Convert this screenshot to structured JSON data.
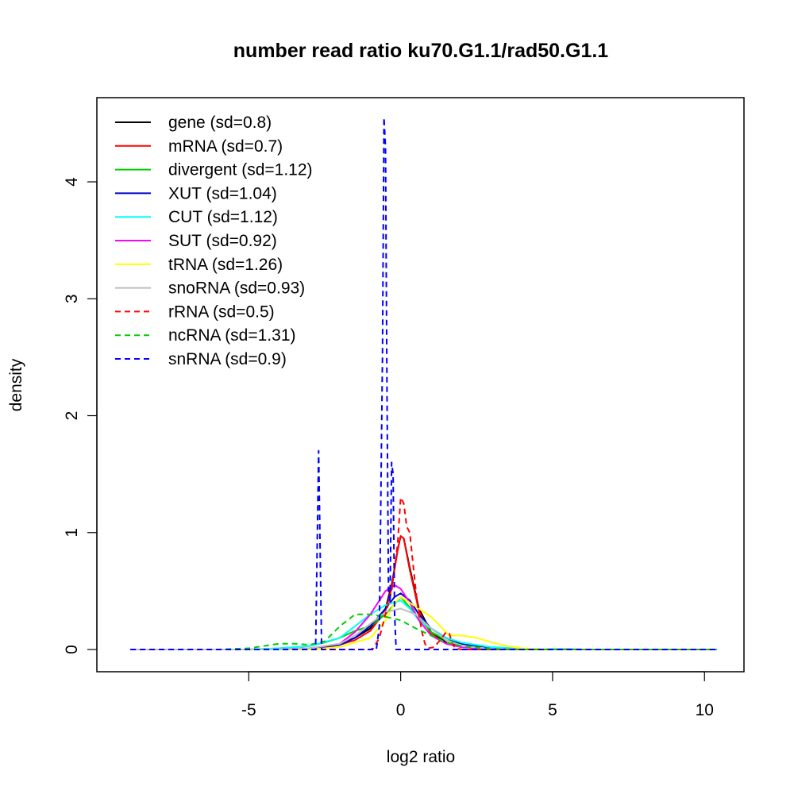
{
  "chart_data": {
    "type": "line",
    "title": "number read ratio ku70.G1.1/rad50.G1.1",
    "xlabel": "log2 ratio",
    "ylabel": "density",
    "xlim": [
      -10.0,
      11.3
    ],
    "ylim": [
      -0.19,
      4.72
    ],
    "xticks": [
      -5,
      0,
      5,
      10
    ],
    "yticks": [
      0,
      1,
      2,
      3,
      4
    ],
    "xtick_labels": [
      "-5",
      "0",
      "5",
      "10"
    ],
    "ytick_labels": [
      "0",
      "1",
      "2",
      "3",
      "4"
    ],
    "legend_position": "top-left",
    "series": [
      {
        "name": "gene (sd=0.8)",
        "color": "#000000",
        "dash": "solid",
        "x": [
          -8.9,
          -4,
          -3,
          -2.5,
          -2,
          -1.5,
          -1,
          -0.5,
          -0.3,
          -0.1,
          0,
          0.1,
          0.3,
          0.6,
          1,
          1.5,
          2,
          3,
          4,
          6,
          10.4
        ],
        "y": [
          0,
          0,
          0.005,
          0.02,
          0.05,
          0.1,
          0.18,
          0.35,
          0.55,
          0.85,
          0.97,
          0.95,
          0.7,
          0.35,
          0.15,
          0.06,
          0.03,
          0.01,
          0.002,
          0,
          0
        ]
      },
      {
        "name": "mRNA (sd=0.7)",
        "color": "#ff0000",
        "dash": "solid",
        "x": [
          -8.9,
          -4,
          -3,
          -2.5,
          -2,
          -1.5,
          -1,
          -0.5,
          -0.3,
          -0.1,
          0,
          0.1,
          0.3,
          0.6,
          1,
          1.5,
          2,
          3,
          4,
          6,
          10.4
        ],
        "y": [
          0,
          0,
          0.005,
          0.02,
          0.04,
          0.08,
          0.16,
          0.33,
          0.52,
          0.85,
          0.97,
          0.95,
          0.68,
          0.33,
          0.13,
          0.05,
          0.02,
          0.008,
          0.002,
          0,
          0
        ]
      },
      {
        "name": "divergent (sd=1.12)",
        "color": "#00cd00",
        "dash": "solid",
        "x": [
          -8.9,
          -5,
          -4,
          -3,
          -2.5,
          -2,
          -1.5,
          -1,
          -0.5,
          0,
          0.5,
          1,
          1.5,
          2,
          2.5,
          3,
          4,
          6,
          10.4
        ],
        "y": [
          0,
          0,
          0.01,
          0.03,
          0.06,
          0.1,
          0.16,
          0.2,
          0.3,
          0.45,
          0.3,
          0.15,
          0.08,
          0.05,
          0.03,
          0.02,
          0.005,
          0,
          0
        ]
      },
      {
        "name": "XUT (sd=1.04)",
        "color": "#0000cd",
        "dash": "solid",
        "x": [
          -8.9,
          -4,
          -3,
          -2,
          -1.5,
          -1,
          -0.5,
          -0.2,
          0,
          0.3,
          0.6,
          1,
          1.5,
          2,
          3,
          4,
          6,
          10.4
        ],
        "y": [
          0,
          0,
          0.01,
          0.04,
          0.1,
          0.2,
          0.35,
          0.45,
          0.48,
          0.42,
          0.3,
          0.18,
          0.1,
          0.05,
          0.015,
          0.003,
          0,
          0
        ]
      },
      {
        "name": "CUT (sd=1.12)",
        "color": "#00ffff",
        "dash": "solid",
        "x": [
          -8.9,
          -5,
          -4,
          -3,
          -2,
          -1.5,
          -1,
          -0.5,
          0,
          0.3,
          0.6,
          1,
          1.5,
          2,
          3,
          4,
          6,
          10.4
        ],
        "y": [
          0,
          0,
          0.01,
          0.03,
          0.1,
          0.2,
          0.3,
          0.38,
          0.42,
          0.35,
          0.25,
          0.18,
          0.1,
          0.06,
          0.02,
          0.005,
          0,
          0
        ]
      },
      {
        "name": "SUT (sd=0.92)",
        "color": "#ff00ff",
        "dash": "solid",
        "x": [
          -8.9,
          -4,
          -3,
          -2,
          -1.5,
          -1,
          -0.5,
          -0.2,
          0,
          0.3,
          0.6,
          1,
          1.5,
          2,
          3,
          4,
          6,
          10.4
        ],
        "y": [
          0,
          0,
          0.01,
          0.05,
          0.15,
          0.3,
          0.5,
          0.55,
          0.52,
          0.4,
          0.25,
          0.12,
          0.05,
          0.02,
          0.005,
          0,
          0,
          0
        ]
      },
      {
        "name": "tRNA (sd=1.26)",
        "color": "#ffff00",
        "dash": "solid",
        "x": [
          -8.9,
          -3,
          -2,
          -1,
          -0.5,
          -0.2,
          0,
          0.3,
          0.6,
          1,
          1.3,
          1.6,
          2,
          2.5,
          3,
          3.5,
          4,
          5,
          10.4
        ],
        "y": [
          0,
          0,
          0.02,
          0.1,
          0.25,
          0.4,
          0.45,
          0.4,
          0.35,
          0.28,
          0.2,
          0.12,
          0.12,
          0.1,
          0.06,
          0.03,
          0.01,
          0,
          0
        ]
      },
      {
        "name": "snoRNA (sd=0.93)",
        "color": "#bebebe",
        "dash": "solid",
        "x": [
          -8.9,
          -4,
          -3,
          -2,
          -1.5,
          -1,
          -0.5,
          0,
          0.5,
          1,
          1.5,
          2,
          3,
          4,
          10.4
        ],
        "y": [
          0,
          0,
          0.01,
          0.05,
          0.12,
          0.22,
          0.32,
          0.35,
          0.3,
          0.18,
          0.08,
          0.03,
          0.005,
          0,
          0
        ]
      },
      {
        "name": "rRNA (sd=0.5)",
        "color": "#ff0000",
        "dash": "dashed",
        "x": [
          -8.9,
          -1,
          -0.9,
          -0.7,
          -0.5,
          -0.3,
          -0.1,
          0,
          0.1,
          0.2,
          0.3,
          0.4,
          0.5,
          0.6,
          0.7,
          0.8,
          0.9,
          1.1,
          1.3,
          1.5,
          1.6,
          1.7,
          1.8,
          2,
          10.4
        ],
        "y": [
          0,
          0,
          0.01,
          0.1,
          0.3,
          0.5,
          0.9,
          1.3,
          1.25,
          1.05,
          1.0,
          0.75,
          0.5,
          0.3,
          0.15,
          0.05,
          0.01,
          0.02,
          0.08,
          0.15,
          0.14,
          0.05,
          0.01,
          0,
          0
        ]
      },
      {
        "name": "ncRNA (sd=1.31)",
        "color": "#00cd00",
        "dash": "dashed",
        "x": [
          -8.9,
          -6,
          -5,
          -4.5,
          -4,
          -3.5,
          -3,
          -2.5,
          -2,
          -1.5,
          -1,
          -0.5,
          0,
          0.5,
          1,
          1.5,
          2,
          3,
          4,
          10.4
        ],
        "y": [
          0,
          0,
          0.01,
          0.03,
          0.05,
          0.05,
          0.04,
          0.07,
          0.2,
          0.3,
          0.3,
          0.28,
          0.25,
          0.18,
          0.12,
          0.06,
          0.03,
          0.005,
          0,
          0
        ]
      },
      {
        "name": "snRNA (sd=0.9)",
        "color": "#0000ff",
        "dash": "dashed",
        "x": [
          -8.9,
          -2.8,
          -2.7,
          -2.6,
          -2.5,
          -0.8,
          -0.7,
          -0.6,
          -0.55,
          -0.5,
          -0.45,
          -0.4,
          -0.35,
          -0.3,
          -0.25,
          -0.2,
          -0.15,
          -0.1,
          10.4
        ],
        "y": [
          0,
          0,
          1.7,
          0,
          0,
          0,
          0.2,
          2.5,
          4.55,
          4.3,
          2.2,
          0.5,
          0.4,
          1.6,
          1.5,
          0.3,
          0,
          0,
          0
        ]
      }
    ]
  }
}
